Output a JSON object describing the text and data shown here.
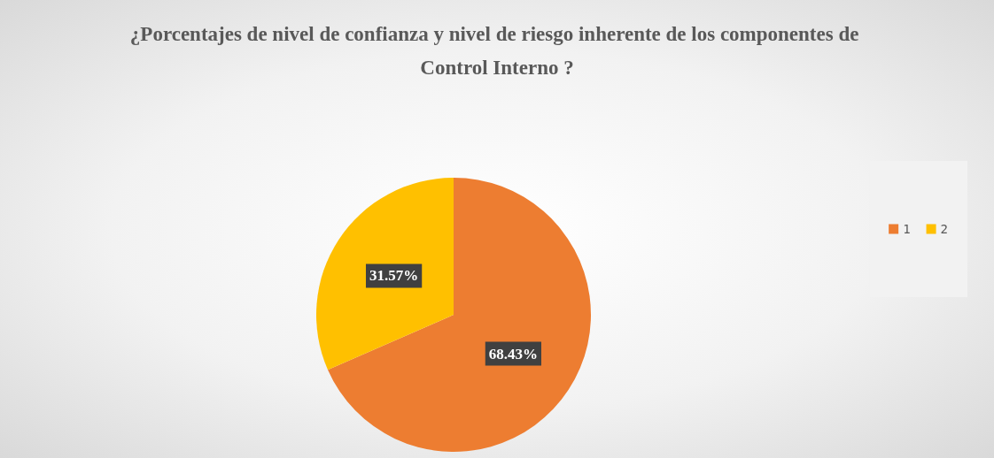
{
  "chart_data": {
    "type": "pie",
    "title": "¿Porcentajes de nivel de confianza y nivel de riesgo inherente de los componentes de Control Interno ?",
    "categories": [
      "1",
      "2"
    ],
    "values": [
      68.43,
      31.57
    ],
    "colors": [
      "#ed7d31",
      "#ffc000"
    ],
    "value_labels": [
      "68.43%",
      "31.57%"
    ],
    "legend": "right"
  }
}
